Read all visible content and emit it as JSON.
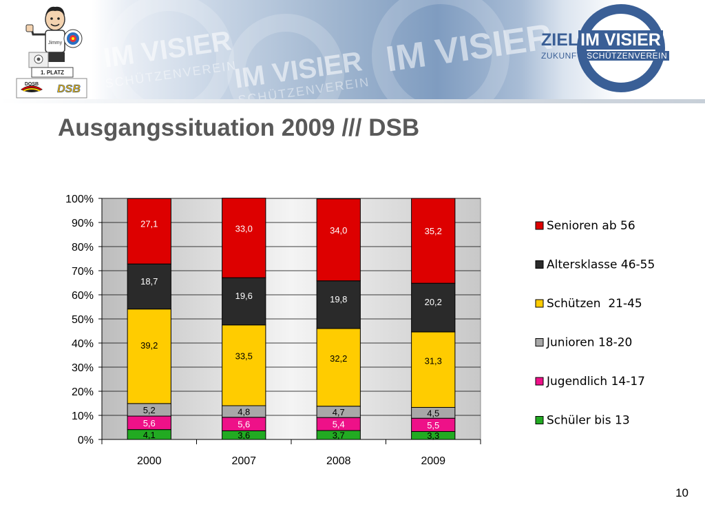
{
  "slide": {
    "title": "Ausgangssituation 2009 /// DSB",
    "page_number": "10"
  },
  "header": {
    "watermark_main": "IM VISIER",
    "watermark_sub": "SCHÜTZENVEREIN",
    "brand_ziel": "ZIEL",
    "brand_im_visier": "IM VISIER",
    "brand_zukunft": "ZUKUNFT",
    "brand_schuetzenverein": "SCHÜTZENVEREIN",
    "left_logo_badge": "1. PLATZ",
    "left_logo_dosb": "DOSB",
    "left_logo_dsb": "DSB",
    "left_logo_name": "Jimmy"
  },
  "colors": {
    "title": "#595959",
    "brand_blue": "#3a5f96"
  },
  "chart_data": {
    "type": "bar",
    "stacked": true,
    "percent": true,
    "categories": [
      "2000",
      "2007",
      "2008",
      "2009"
    ],
    "y_ticks": [
      "0%",
      "10%",
      "20%",
      "30%",
      "40%",
      "50%",
      "60%",
      "70%",
      "80%",
      "90%",
      "100%"
    ],
    "ylim": [
      0,
      100
    ],
    "grid": true,
    "legend_position": "right",
    "series": [
      {
        "name": "Schüler bis 13",
        "values": [
          4.1,
          3.6,
          3.7,
          3.3
        ],
        "labels": [
          "4,1",
          "3,6",
          "3,7",
          "3,3"
        ],
        "color": "#22aa22",
        "label_color": "#000000"
      },
      {
        "name": "Jugendlich 14-17",
        "values": [
          5.6,
          5.6,
          5.4,
          5.5
        ],
        "labels": [
          "5,6",
          "5,6",
          "5,4",
          "5,5"
        ],
        "color": "#ee1188",
        "label_color": "#ffffff"
      },
      {
        "name": "Junioren 18-20",
        "values": [
          5.2,
          4.8,
          4.7,
          4.5
        ],
        "labels": [
          "5,2",
          "4,8",
          "4,7",
          "4,5"
        ],
        "color": "#a8a8a8",
        "label_color": "#000000"
      },
      {
        "name": "Schützen  21-45",
        "values": [
          39.2,
          33.5,
          32.2,
          31.3
        ],
        "labels": [
          "39,2",
          "33,5",
          "32,2",
          "31,3"
        ],
        "color": "#ffcc00",
        "label_color": "#000000"
      },
      {
        "name": "Altersklasse 46-55",
        "values": [
          18.7,
          19.6,
          19.8,
          20.2
        ],
        "labels": [
          "18,7",
          "19,6",
          "19,8",
          "20,2"
        ],
        "color": "#2a2a2a",
        "label_color": "#ffffff"
      },
      {
        "name": "Senioren ab 56",
        "values": [
          27.1,
          33.0,
          34.0,
          35.2
        ],
        "labels": [
          "27,1",
          "33,0",
          "34,0",
          "35,2"
        ],
        "color": "#dd0000",
        "label_color": "#ffffff"
      }
    ],
    "legend_order": [
      "Senioren ab 56",
      "Altersklasse 46-55",
      "Schützen  21-45",
      "Junioren 18-20",
      "Jugendlich 14-17",
      "Schüler bis 13"
    ]
  }
}
